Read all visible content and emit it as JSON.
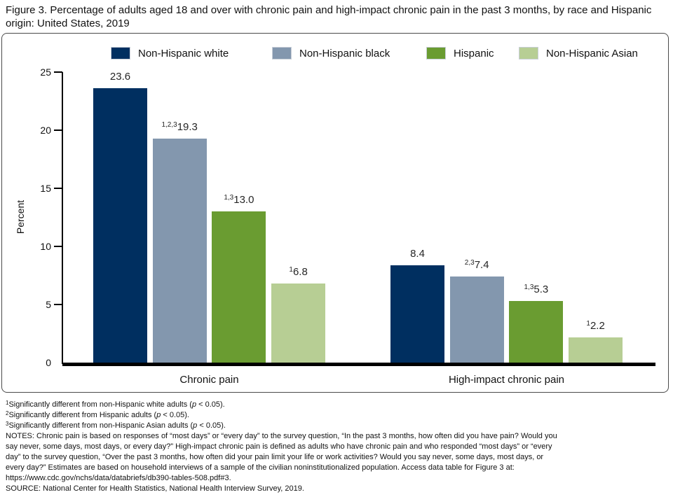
{
  "title": "Figure 3. Percentage of adults aged 18 and over with chronic pain and high-impact chronic pain in the past 3 months, by race and Hispanic origin: United States, 2019",
  "colors": {
    "navy": "#002f60",
    "blue_gray": "#8397ae",
    "green": "#6a9c31",
    "light_green": "#b7ce94",
    "axis": "#000000"
  },
  "chart_data": {
    "type": "bar",
    "categories": [
      "Chronic pain",
      "High-impact chronic pain"
    ],
    "series": [
      {
        "name": "Non-Hispanic white",
        "color": "#002f60",
        "values": [
          23.6,
          8.4
        ],
        "superscripts": [
          "",
          ""
        ]
      },
      {
        "name": "Non-Hispanic black",
        "color": "#8397ae",
        "values": [
          19.3,
          7.4
        ],
        "superscripts": [
          "1,2,3",
          "2,3"
        ]
      },
      {
        "name": "Hispanic",
        "color": "#6a9c31",
        "values": [
          13.0,
          5.3
        ],
        "superscripts": [
          "1,3",
          "1,3"
        ]
      },
      {
        "name": "Non-Hispanic Asian",
        "color": "#b7ce94",
        "values": [
          6.8,
          2.2
        ],
        "superscripts": [
          "1",
          "1"
        ]
      }
    ],
    "title": "",
    "xlabel": "",
    "ylabel": "Percent",
    "ylim": [
      0,
      25
    ],
    "yticks": [
      0,
      5,
      10,
      15,
      20,
      25
    ],
    "legend_position": "top",
    "grid": false
  },
  "footnotes": {
    "significance": [
      {
        "sup": "1",
        "before": "Significantly different from non-Hispanic white adults (",
        "p": "p",
        "after": " < 0.05)."
      },
      {
        "sup": "2",
        "before": "Significantly different from Hispanic adults (",
        "p": "p",
        "after": " < 0.05)."
      },
      {
        "sup": "3",
        "before": "Significantly different from non-Hispanic Asian adults (",
        "p": "p",
        "after": " < 0.05)."
      }
    ],
    "notes_lines": [
      "NOTES: Chronic pain is based on responses of “most days” or “every day” to the survey question, “In the past 3 months, how often did you have pain? Would you",
      "say never, some days, most days, or every day?” High-impact chronic pain is defined as adults who have chronic pain and who responded “most days” or “every",
      "day” to the survey question, “Over the past 3 months, how often did your pain limit your life or work activities? Would you say never, some days, most days, or",
      "every day?” Estimates are based on household interviews of a sample of the civilian noninstitutionalized population. Access data table for Figure 3 at:",
      "https://www.cdc.gov/nchs/data/databriefs/db390-tables-508.pdf#3."
    ],
    "source": "SOURCE: National Center for Health Statistics, National Health Interview Survey, 2019."
  }
}
